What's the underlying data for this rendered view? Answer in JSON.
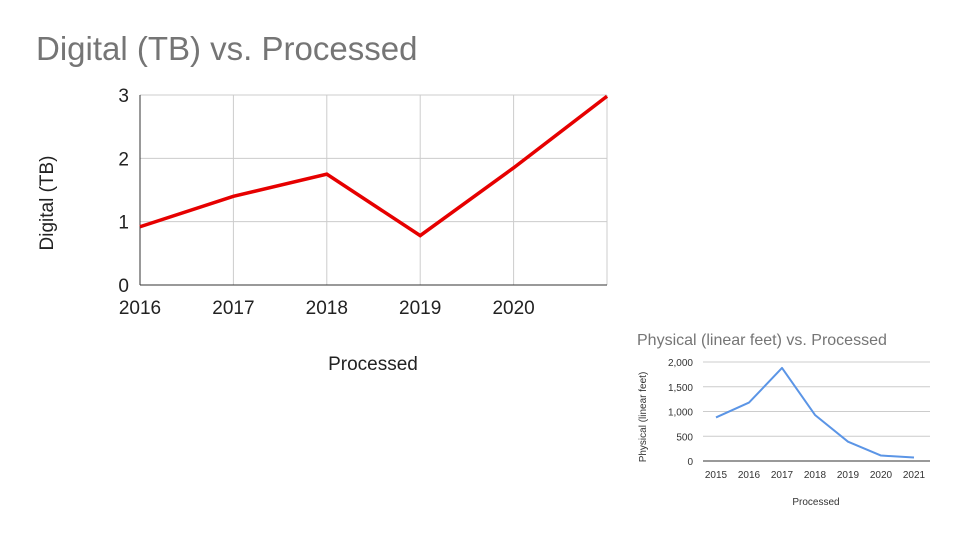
{
  "slide": {
    "title": "Digital (TB) vs. Processed"
  },
  "chart_data": [
    {
      "type": "line",
      "title": "",
      "xlabel": "Processed",
      "ylabel": "Digital (TB)",
      "x": [
        2016,
        2017,
        2018,
        2019,
        2020,
        2021
      ],
      "x_tick_labels": [
        "2016",
        "2017",
        "2018",
        "2019",
        "2020"
      ],
      "y_tick_labels": [
        "0",
        "1",
        "2",
        "3"
      ],
      "xlim": [
        2016,
        2021
      ],
      "ylim": [
        0,
        3
      ],
      "grid": true,
      "series": [
        {
          "values": [
            0.92,
            1.4,
            1.75,
            0.78,
            1.85,
            2.98
          ],
          "color": "#e60000"
        }
      ]
    },
    {
      "type": "line",
      "title": "Physical (linear feet) vs. Processed",
      "xlabel": "Processed",
      "ylabel": "Physical (linear feet)",
      "x": [
        2015,
        2016,
        2017,
        2018,
        2019,
        2020,
        2021
      ],
      "x_tick_labels": [
        "2015",
        "2016",
        "2017",
        "2018",
        "2019",
        "2020",
        "2021"
      ],
      "y_tick_labels": [
        "0",
        "500",
        "1,000",
        "1,500",
        "2,000"
      ],
      "ylim": [
        0,
        2000
      ],
      "grid": true,
      "series": [
        {
          "values": [
            880,
            1180,
            1880,
            930,
            390,
            110,
            70
          ],
          "color": "#5b95e6"
        }
      ]
    }
  ]
}
